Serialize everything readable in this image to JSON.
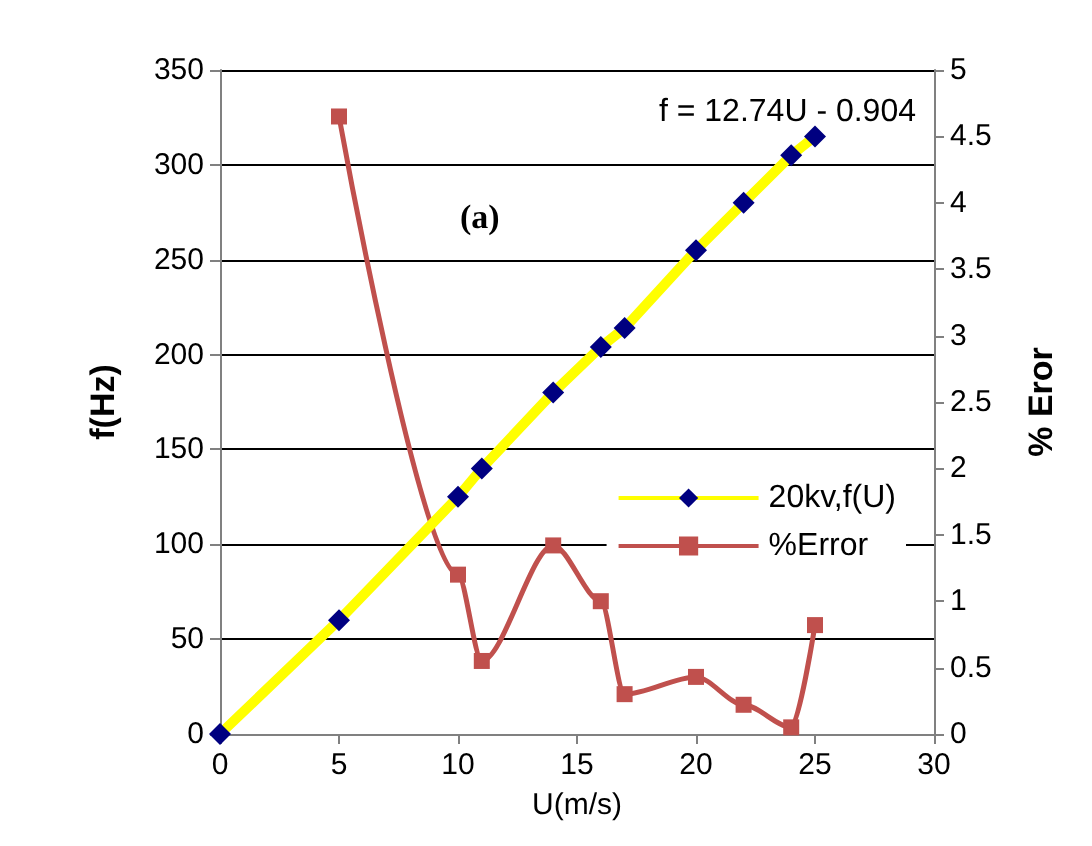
{
  "chart_data": {
    "type": "line",
    "xlabel": "U(m/s)",
    "ylabel": "f(Hz)",
    "y2label": "% Eror",
    "annotations": [
      "f = 12.74U - 0.904",
      "(a)"
    ],
    "series": [
      {
        "name": "20kv,f(U)",
        "color": "#ffff00",
        "marker": "diamond",
        "x": [
          0,
          5,
          10,
          11,
          14,
          16,
          17,
          20,
          22,
          24,
          25
        ],
        "values": [
          0,
          60,
          125,
          140,
          180,
          204,
          214,
          255,
          280,
          305,
          315
        ]
      },
      {
        "name": "%Error",
        "color": "#c0504d",
        "marker": "square",
        "axis": "y2",
        "x": [
          5,
          10,
          11,
          14,
          16,
          17,
          20,
          22,
          24,
          25
        ],
        "values": [
          4.65,
          1.2,
          0.55,
          1.42,
          1.0,
          0.3,
          0.43,
          0.22,
          0.05,
          0.82
        ]
      }
    ],
    "xlim": [
      0,
      30
    ],
    "xticks": [
      0,
      5,
      10,
      15,
      20,
      25,
      30
    ],
    "ylim": [
      0,
      350
    ],
    "yticks": [
      0,
      50,
      100,
      150,
      200,
      250,
      300,
      350
    ],
    "y2lim": [
      0,
      5
    ],
    "y2ticks": [
      0,
      0.5,
      1,
      1.5,
      2,
      2.5,
      3,
      3.5,
      4,
      4.5,
      5
    ],
    "grid": "y",
    "legend": "right"
  }
}
